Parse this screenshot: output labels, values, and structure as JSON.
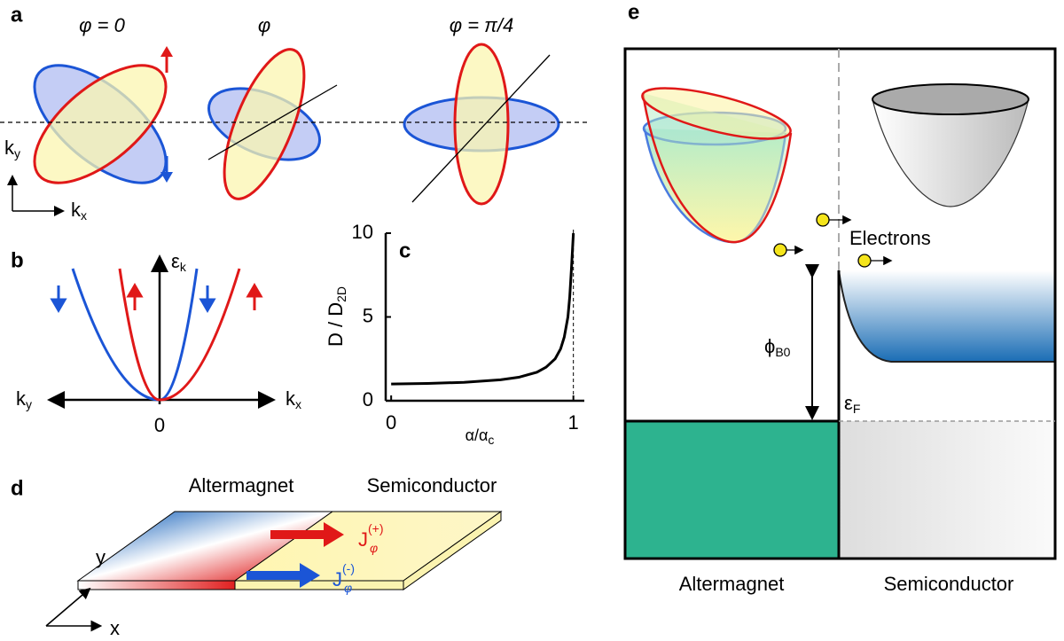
{
  "figure": {
    "panel_labels": [
      "a",
      "b",
      "c",
      "d",
      "e"
    ],
    "a": {
      "titles": [
        "φ = 0",
        "φ",
        "φ = π/4"
      ],
      "ky": {
        "base": "k",
        "sub": "y"
      },
      "kx": {
        "base": "k",
        "sub": "x"
      }
    },
    "b": {
      "ek": {
        "base": "ε",
        "sub": "k"
      },
      "ky": {
        "base": "k",
        "sub": "y"
      },
      "kx": {
        "base": "k",
        "sub": "x"
      },
      "origin": "0"
    },
    "d": {
      "left": "Altermagnet",
      "right": "Semiconductor",
      "y": "y",
      "x": "x",
      "jplus": {
        "base": "J",
        "sup": "(+)",
        "sub": "φ"
      },
      "jminus": {
        "base": "J",
        "sup": "(-)",
        "sub": "φ"
      }
    },
    "e": {
      "electrons": "Electrons",
      "phi": {
        "base": "ϕ",
        "sub": "B0"
      },
      "ef": {
        "base": "ε",
        "sub": "F"
      },
      "left": "Altermagnet",
      "right": "Semiconductor"
    }
  },
  "chart_data": {
    "type": "line",
    "ylabel": {
      "base": "D / D",
      "sub": "2D"
    },
    "xlabel": {
      "base": "α/α",
      "sub": "c"
    },
    "x": [
      0,
      0.2,
      0.4,
      0.6,
      0.7,
      0.8,
      0.85,
      0.9,
      0.93,
      0.95,
      0.97,
      0.98,
      0.99,
      1.0
    ],
    "values": [
      1.0,
      1.03,
      1.1,
      1.25,
      1.4,
      1.7,
      2.0,
      2.5,
      3.1,
      3.8,
      5.0,
      6.2,
      8.0,
      10
    ],
    "color": "#000000",
    "xlim": [
      -0.03,
      1.06
    ],
    "ylim": [
      0,
      10
    ],
    "xticks": [
      0,
      1
    ],
    "yticks": [
      0,
      5,
      10
    ]
  }
}
